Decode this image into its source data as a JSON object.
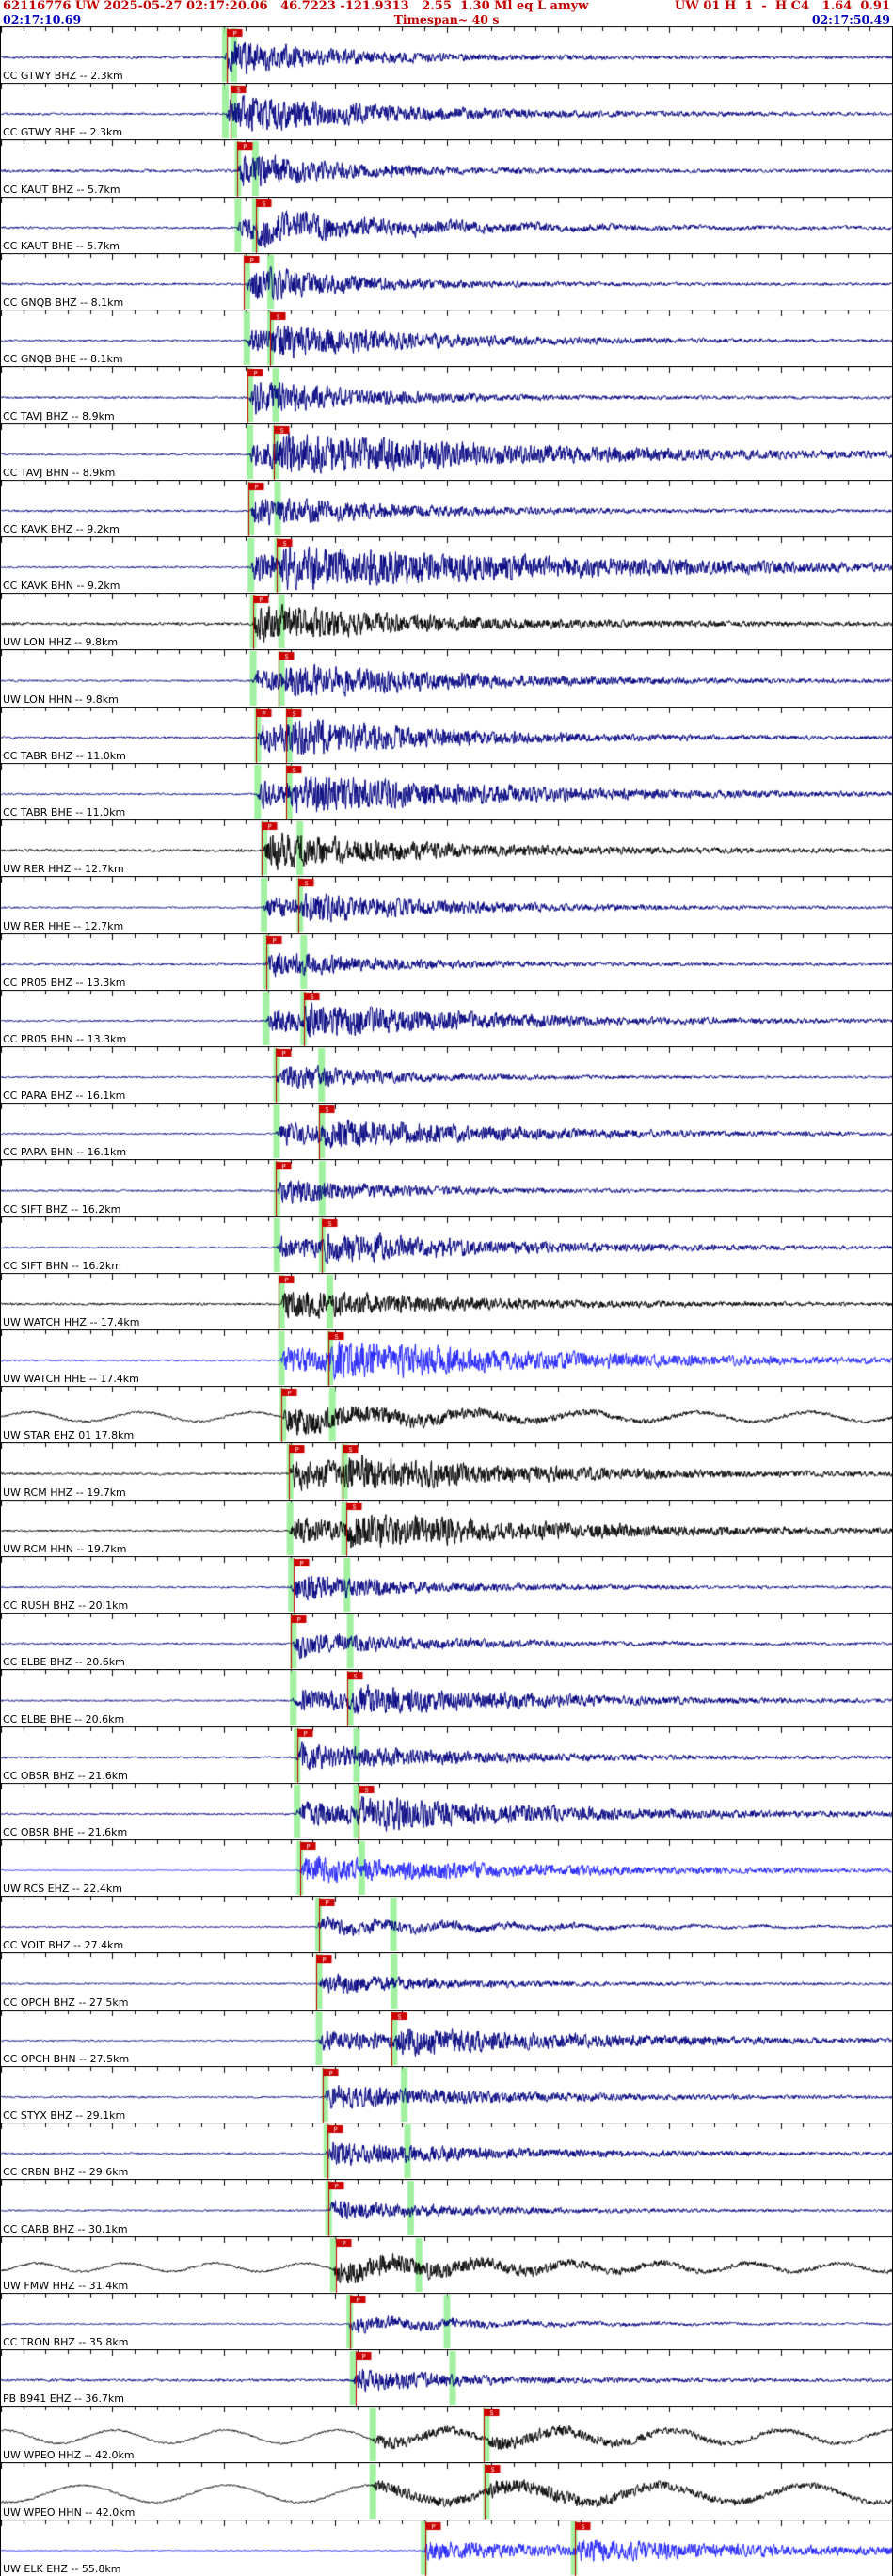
{
  "header": {
    "line1_left": "62116776 UW 2025-05-27 02:17:20.06   46.7223 -121.9313   2.55  1.30 Ml eq L amyw",
    "line1_right": "UW 01 H  1  -  H C4   1.64  0.91",
    "time_start": "02:17:10.69",
    "timespan": "Timespan~ 40 s",
    "time_end": "02:17:50.49"
  },
  "display": {
    "window_seconds": 40,
    "origin_offset_seconds": 9.37,
    "vp": 6.0,
    "vs": 3.5,
    "colors": {
      "navy": "#000080",
      "black": "#000000",
      "blue": "#2222ff",
      "pick": "#cc0000",
      "predicted": "#90ee90",
      "header_red": "#cc0000",
      "header_blue": "#0000bb",
      "axis": "#000000"
    }
  },
  "traces": [
    {
      "label": "CC GTWY BHZ -- 2.3km",
      "dist": 2.3,
      "color": "navy",
      "amp": 16,
      "coda": 5,
      "noise": 1.4,
      "picks": [
        "P"
      ]
    },
    {
      "label": "CC GTWY BHE -- 2.3km",
      "dist": 2.3,
      "color": "navy",
      "amp": 12,
      "coda": 6,
      "noise": 1.2,
      "samp": 8,
      "picks": [
        "S"
      ]
    },
    {
      "label": "CC KAUT BHZ -- 5.7km",
      "dist": 5.7,
      "color": "navy",
      "amp": 17,
      "coda": 4.5,
      "noise": 1.5,
      "picks": [
        "P"
      ]
    },
    {
      "label": "CC KAUT BHE -- 5.7km",
      "dist": 5.7,
      "color": "navy",
      "amp": 10,
      "coda": 6,
      "noise": 1.2,
      "lf": 5,
      "lfp": 3.5,
      "samp": 7,
      "picks": [
        "S"
      ]
    },
    {
      "label": "CC GNQB BHZ -- 8.1km",
      "dist": 8.1,
      "color": "navy",
      "amp": 18,
      "coda": 4.5,
      "noise": 1.2,
      "picks": [
        "P"
      ]
    },
    {
      "label": "CC GNQB BHE -- 8.1km",
      "dist": 8.1,
      "color": "navy",
      "amp": 11,
      "coda": 6,
      "noise": 1.0,
      "samp": 8,
      "picks": [
        "S"
      ]
    },
    {
      "label": "CC TAVJ BHZ -- 8.9km",
      "dist": 8.9,
      "color": "navy",
      "amp": 16,
      "coda": 5,
      "noise": 1.2,
      "picks": [
        "P"
      ]
    },
    {
      "label": "CC TAVJ BHN -- 8.9km",
      "dist": 8.9,
      "color": "navy",
      "amp": 13,
      "coda": 10,
      "noise": 1.0,
      "samp": 10,
      "picks": [
        "S"
      ]
    },
    {
      "label": "CC KAVK BHZ -- 9.2km",
      "dist": 9.2,
      "color": "navy",
      "amp": 15,
      "coda": 6,
      "noise": 1.2,
      "picks": [
        "P"
      ]
    },
    {
      "label": "CC KAVK BHN -- 9.2km",
      "dist": 9.2,
      "color": "navy",
      "amp": 13,
      "coda": 12,
      "noise": 1.0,
      "samp": 11,
      "picks": [
        "S"
      ]
    },
    {
      "label": "UW LON HHZ -- 9.8km",
      "dist": 9.8,
      "color": "black",
      "amp": 18,
      "coda": 7,
      "noise": 1.5,
      "picks": [
        "P"
      ]
    },
    {
      "label": "UW LON HHN -- 9.8km",
      "dist": 9.8,
      "color": "navy",
      "amp": 10,
      "coda": 7,
      "noise": 1.0,
      "samp": 8,
      "picks": [
        "S"
      ]
    },
    {
      "label": "CC TABR BHZ -- 11.0km",
      "dist": 11.0,
      "color": "navy",
      "amp": 14,
      "coda": 6,
      "noise": 1.2,
      "samp": 8,
      "picks": [
        "P",
        "S"
      ]
    },
    {
      "label": "CC TABR BHE -- 11.0km",
      "dist": 11.0,
      "color": "navy",
      "amp": 12,
      "coda": 8,
      "noise": 1.0,
      "samp": 10,
      "picks": [
        "S"
      ]
    },
    {
      "label": "UW RER HHZ -- 12.7km",
      "dist": 12.7,
      "color": "black",
      "amp": 17,
      "coda": 7,
      "noise": 1.5,
      "picks": [
        "P"
      ]
    },
    {
      "label": "UW RER HHE -- 12.7km",
      "dist": 12.7,
      "color": "navy",
      "amp": 9,
      "coda": 6,
      "noise": 0.9,
      "samp": 7,
      "picks": [
        "S"
      ]
    },
    {
      "label": "CC PR05 BHZ -- 13.3km",
      "dist": 13.3,
      "color": "navy",
      "amp": 13,
      "coda": 5,
      "noise": 1.2,
      "picks": [
        "P"
      ]
    },
    {
      "label": "CC PR05 BHN -- 13.3km",
      "dist": 13.3,
      "color": "navy",
      "amp": 11,
      "coda": 7,
      "noise": 1.0,
      "samp": 9,
      "picks": [
        "S"
      ]
    },
    {
      "label": "CC PARA BHZ -- 16.1km",
      "dist": 16.1,
      "color": "navy",
      "amp": 12,
      "coda": 5,
      "noise": 1.0,
      "picks": [
        "P"
      ]
    },
    {
      "label": "CC PARA BHN -- 16.1km",
      "dist": 16.1,
      "color": "navy",
      "amp": 10,
      "coda": 7,
      "noise": 0.9,
      "samp": 8,
      "picks": [
        "S"
      ]
    },
    {
      "label": "CC SIFT BHZ -- 16.2km",
      "dist": 16.2,
      "color": "navy",
      "amp": 12,
      "coda": 5,
      "noise": 1.0,
      "picks": [
        "P"
      ]
    },
    {
      "label": "CC SIFT BHN -- 16.2km",
      "dist": 16.2,
      "color": "navy",
      "amp": 10,
      "coda": 7,
      "noise": 0.9,
      "samp": 8,
      "picks": [
        "S"
      ]
    },
    {
      "label": "UW WATCH HHZ -- 17.4km",
      "dist": 17.4,
      "color": "black",
      "amp": 15,
      "coda": 7,
      "noise": 1.3,
      "picks": [
        "P"
      ]
    },
    {
      "label": "UW WATCH HHE -- 17.4km",
      "dist": 17.4,
      "color": "blue",
      "amp": 12,
      "coda": 9,
      "noise": 1.0,
      "samp": 10,
      "picks": [
        "S"
      ]
    },
    {
      "label": "UW STAR EHZ 01 17.8km",
      "dist": 17.8,
      "color": "black",
      "amp": 14,
      "coda": 6,
      "noise": 1.2,
      "lf": 5,
      "lfp": 5,
      "lfpre": true,
      "picks": [
        "P"
      ]
    },
    {
      "label": "UW RCM HHZ -- 19.7km",
      "dist": 19.7,
      "color": "black",
      "amp": 14,
      "coda": 7,
      "noise": 1.2,
      "samp": 8,
      "picks": [
        "P",
        "S"
      ]
    },
    {
      "label": "UW RCM HHN -- 19.7km",
      "dist": 19.7,
      "color": "black",
      "amp": 12,
      "coda": 8,
      "noise": 1.0,
      "samp": 10,
      "picks": [
        "S"
      ]
    },
    {
      "label": "CC RUSH BHZ -- 20.1km",
      "dist": 20.1,
      "color": "navy",
      "amp": 12,
      "coda": 6,
      "noise": 1.0,
      "picks": [
        "P"
      ]
    },
    {
      "label": "CC ELBE BHZ -- 20.6km",
      "dist": 20.6,
      "color": "navy",
      "amp": 11,
      "coda": 6,
      "noise": 1.0,
      "lf": 2,
      "lfp": 3,
      "picks": [
        "P"
      ]
    },
    {
      "label": "CC ELBE BHE -- 20.6km",
      "dist": 20.6,
      "color": "navy",
      "amp": 10,
      "coda": 7,
      "noise": 0.9,
      "samp": 8,
      "picks": [
        "S"
      ]
    },
    {
      "label": "CC OBSR BHZ -- 21.6km",
      "dist": 21.6,
      "color": "navy",
      "amp": 13,
      "coda": 7,
      "noise": 1.1,
      "picks": [
        "P"
      ]
    },
    {
      "label": "CC OBSR BHE -- 21.6km",
      "dist": 21.6,
      "color": "navy",
      "amp": 11,
      "coda": 8,
      "noise": 1.0,
      "samp": 9,
      "picks": [
        "S"
      ]
    },
    {
      "label": "UW RCS EHZ -- 22.4km",
      "dist": 22.4,
      "color": "blue",
      "amp": 13,
      "coda": 11,
      "noise": 0.5,
      "picks": [
        "P"
      ]
    },
    {
      "label": "CC VOIT BHZ -- 27.4km",
      "dist": 27.4,
      "color": "navy",
      "amp": 7,
      "coda": 8,
      "noise": 0.8,
      "lf": 3.5,
      "lfp": 2.8,
      "picks": [
        "P"
      ]
    },
    {
      "label": "CC OPCH BHZ -- 27.5km",
      "dist": 27.5,
      "color": "navy",
      "amp": 9,
      "coda": 6,
      "noise": 0.9,
      "picks": [
        "P"
      ]
    },
    {
      "label": "CC OPCH BHN -- 27.5km",
      "dist": 27.5,
      "color": "navy",
      "amp": 9,
      "coda": 8,
      "noise": 0.8,
      "samp": 8,
      "picks": [
        "S"
      ]
    },
    {
      "label": "CC STYX BHZ -- 29.1km",
      "dist": 29.1,
      "color": "navy",
      "amp": 11,
      "coda": 8,
      "noise": 1.0,
      "picks": [
        "P"
      ]
    },
    {
      "label": "CC CRBN BHZ -- 29.6km",
      "dist": 29.6,
      "color": "navy",
      "amp": 11,
      "coda": 8,
      "noise": 1.0,
      "picks": [
        "P"
      ]
    },
    {
      "label": "CC CARB BHZ -- 30.1km",
      "dist": 30.1,
      "color": "navy",
      "amp": 9,
      "coda": 6,
      "noise": 0.9,
      "picks": [
        "P"
      ]
    },
    {
      "label": "UW FMW HHZ -- 31.4km",
      "dist": 31.4,
      "color": "black",
      "amp": 12,
      "coda": 7,
      "noise": 1.2,
      "lf": 4.5,
      "lfp": 4,
      "lfpre": true,
      "picks": [
        "P"
      ]
    },
    {
      "label": "CC TRON BHZ -- 35.8km",
      "dist": 35.8,
      "color": "navy",
      "amp": 7,
      "coda": 6,
      "noise": 0.8,
      "lf": 2.5,
      "lfp": 3,
      "picks": [
        "P"
      ]
    },
    {
      "label": "PB B941 EHZ -- 36.7km",
      "dist": 36.7,
      "color": "navy",
      "amp": 10,
      "coda": 5,
      "noise": 1.4,
      "picks": [
        "P"
      ]
    },
    {
      "label": "UW WPEO HHZ -- 42.0km",
      "dist": 42.0,
      "color": "black",
      "amp": 5,
      "coda": 6,
      "noise": 1.0,
      "lf": 7,
      "lfp": 5,
      "lfpre": true,
      "samp": 5,
      "picks": [
        "S"
      ]
    },
    {
      "label": "UW WPEO HHN -- 42.0km",
      "dist": 42.0,
      "color": "black",
      "amp": 5,
      "coda": 8,
      "noise": 1.0,
      "lf": 9,
      "lfp": 6.5,
      "lfpre": true,
      "samp": 5,
      "picks": [
        "S"
      ]
    },
    {
      "label": "UW ELK EHZ -- 55.8km",
      "dist": 55.8,
      "color": "blue",
      "amp": 9,
      "coda": 9,
      "noise": 0.6,
      "samp": 7,
      "picks": [
        "P",
        "S"
      ]
    }
  ]
}
